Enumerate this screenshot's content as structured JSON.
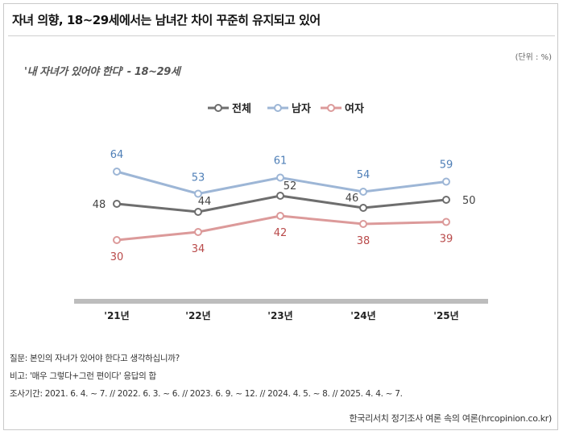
{
  "header": {
    "title": "자녀 의향, 18~29세에서는 남녀간 차이 꾸준히 유지되고 있어",
    "unit": "(단위 : %)",
    "subtitle": "'내 자녀가 있어야 한다' - 18~29세"
  },
  "chart_data": {
    "type": "line",
    "categories": [
      "'21년",
      "'22년",
      "'23년",
      "'24년",
      "'25년"
    ],
    "series": [
      {
        "name": "전체",
        "values": [
          48,
          44,
          52,
          46,
          50
        ],
        "color": "#6e6e6e",
        "label_color": "#444444"
      },
      {
        "name": "남자",
        "values": [
          64,
          53,
          61,
          54,
          59
        ],
        "color": "#9db6d6",
        "label_color": "#4f7fb7"
      },
      {
        "name": "여자",
        "values": [
          30,
          34,
          42,
          38,
          39
        ],
        "color": "#dc9a9a",
        "label_color": "#b94a4a"
      }
    ],
    "legend_position": "top-center",
    "grid": false
  },
  "notes": {
    "question": "질문: 본인의 자녀가 있어야 한다고 생각하십니까?",
    "remark": "비고: '매우 그렇다+그런 편이다' 응답의 합",
    "period": "조사기간: 2021. 6. 4. ~ 7. // 2022. 6. 3. ~ 6. // 2023. 6. 9. ~ 12. // 2024. 4. 5. ~ 8. // 2025. 4. 4. ~ 7."
  },
  "source": "한국리서치 정기조사 여론 속의 여론(hrcopinion.co.kr)"
}
